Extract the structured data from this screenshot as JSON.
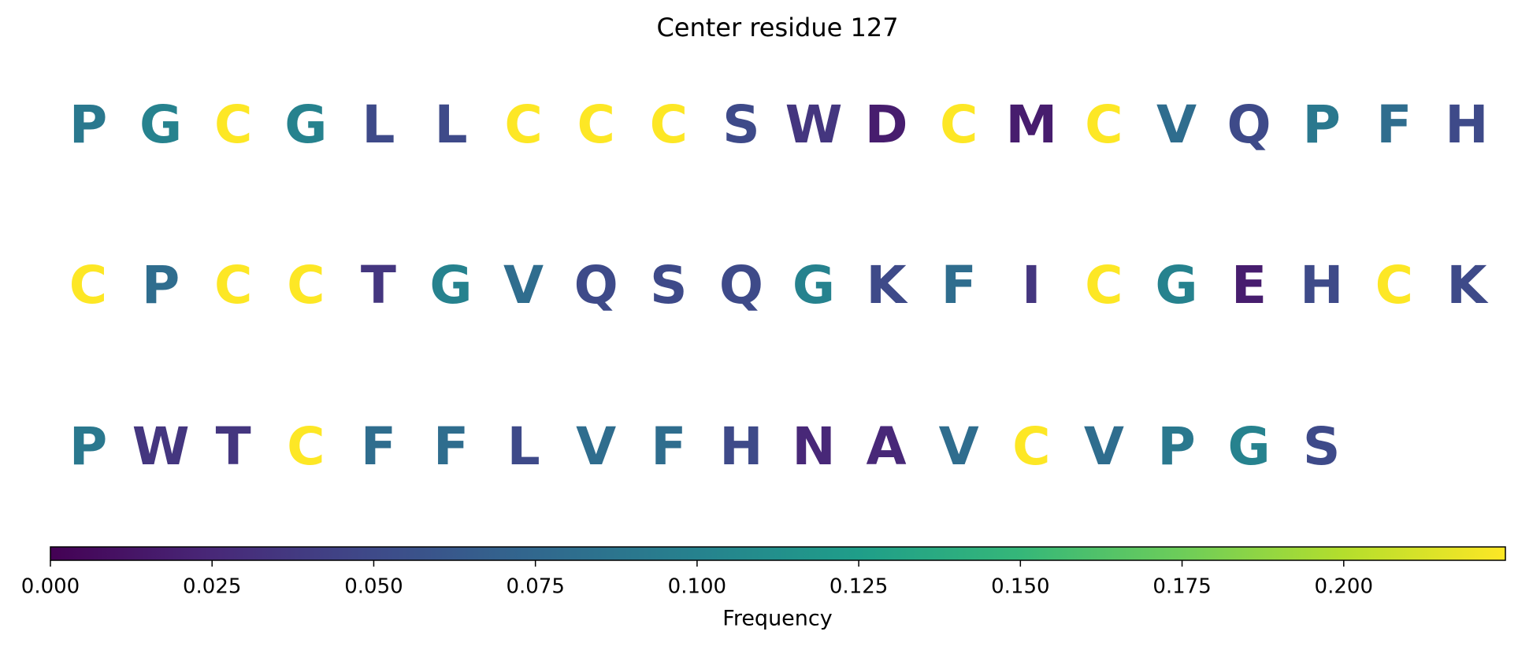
{
  "chart_data": {
    "type": "sequence_logo_heatmap",
    "title": "Center residue 127",
    "colorbar": {
      "label": "Frequency",
      "colormap": "viridis",
      "range": [
        0.0,
        0.225
      ],
      "ticks": [
        0.0,
        0.025,
        0.05,
        0.075,
        0.1,
        0.125,
        0.15,
        0.175,
        0.2
      ],
      "tick_labels": [
        "0.000",
        "0.025",
        "0.050",
        "0.075",
        "0.100",
        "0.125",
        "0.150",
        "0.175",
        "0.200"
      ]
    },
    "rows": [
      {
        "letters": [
          "P",
          "G",
          "C",
          "G",
          "L",
          "L",
          "C",
          "C",
          "C",
          "S",
          "W",
          "D",
          "C",
          "M",
          "C",
          "V",
          "Q",
          "P",
          "F",
          "H"
        ],
        "values": [
          0.09,
          0.1,
          0.225,
          0.1,
          0.05,
          0.05,
          0.225,
          0.225,
          0.225,
          0.05,
          0.035,
          0.018,
          0.225,
          0.018,
          0.225,
          0.08,
          0.05,
          0.09,
          0.08,
          0.05
        ]
      },
      {
        "letters": [
          "C",
          "P",
          "C",
          "C",
          "T",
          "G",
          "V",
          "Q",
          "S",
          "Q",
          "G",
          "K",
          "F",
          "I",
          "C",
          "G",
          "E",
          "H",
          "C",
          "K"
        ],
        "values": [
          0.225,
          0.08,
          0.225,
          0.225,
          0.035,
          0.1,
          0.08,
          0.05,
          0.05,
          0.05,
          0.1,
          0.05,
          0.08,
          0.035,
          0.225,
          0.1,
          0.018,
          0.05,
          0.225,
          0.05
        ]
      },
      {
        "letters": [
          "P",
          "W",
          "T",
          "C",
          "F",
          "F",
          "L",
          "V",
          "F",
          "H",
          "N",
          "A",
          "V",
          "C",
          "V",
          "P",
          "G",
          "S"
        ],
        "values": [
          0.09,
          0.035,
          0.035,
          0.225,
          0.08,
          0.08,
          0.05,
          0.08,
          0.08,
          0.05,
          0.025,
          0.025,
          0.08,
          0.225,
          0.08,
          0.09,
          0.1,
          0.05
        ]
      }
    ]
  }
}
